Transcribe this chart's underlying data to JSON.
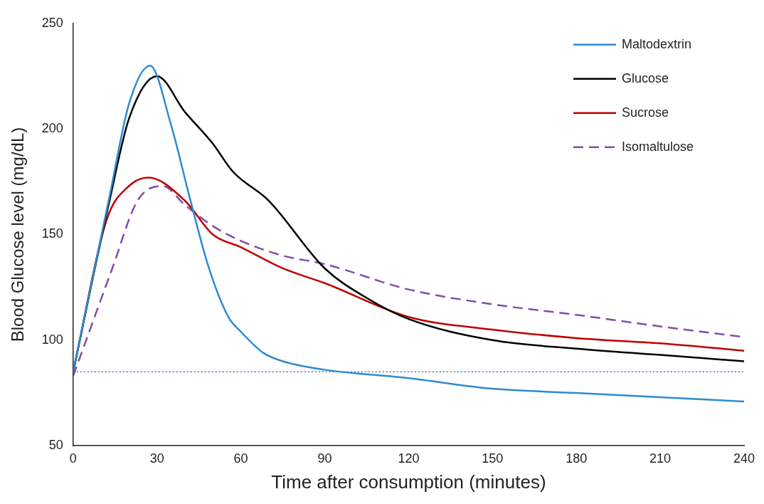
{
  "chart_data": {
    "type": "line",
    "xlabel": "Time after consumption (minutes)",
    "ylabel": "Blood Glucose level (mg/dL)",
    "xlim": [
      0,
      240
    ],
    "xticks": [
      0,
      30,
      60,
      90,
      120,
      150,
      180,
      210,
      240
    ],
    "ylim": [
      50,
      250
    ],
    "yticks": [
      50,
      100,
      150,
      200,
      250
    ],
    "grid": false,
    "legend": "top right",
    "marker": "none",
    "series": [
      {
        "name": "Maltodextrin",
        "color": "#2e8bd0",
        "x": [
          0,
          13,
          20,
          27.5,
          35,
          41.6,
          48.6,
          55.5,
          60,
          68,
          75,
          90,
          120,
          150,
          180,
          210,
          240
        ],
        "values": [
          85,
          168,
          212,
          230,
          202,
          168,
          134,
          111,
          104,
          94,
          90,
          86,
          82,
          77,
          75,
          73,
          71
        ]
      },
      {
        "name": "Glucose",
        "color": "#000000",
        "x": [
          0,
          13,
          20,
          30,
          40,
          50,
          57,
          70,
          90,
          105,
          120,
          150,
          180,
          210,
          240
        ],
        "values": [
          85,
          166,
          205,
          225,
          208,
          193,
          180,
          166,
          134,
          120,
          110,
          100,
          96,
          93,
          90
        ]
      },
      {
        "name": "Sucrose",
        "color": "#c00000",
        "x": [
          0,
          12,
          20,
          27,
          40,
          50,
          60,
          75,
          90,
          120,
          150,
          180,
          210,
          240
        ],
        "values": [
          85,
          157,
          173,
          177,
          166,
          150,
          144,
          134,
          127,
          111,
          105,
          101,
          98.5,
          95
        ]
      },
      {
        "name": "Isomaltulose",
        "color": "#7f4fa6",
        "line_style": "dashed",
        "x": [
          0,
          14,
          23,
          32,
          40,
          50,
          60,
          75,
          90,
          120,
          150,
          180,
          210,
          240
        ],
        "values": [
          83,
          134,
          166,
          173,
          164,
          154,
          147,
          140,
          136,
          124,
          117,
          112,
          106.5,
          101.5
        ]
      }
    ],
    "ref_lines": [
      {
        "axis": "y",
        "value": 85,
        "color": "#4472c4",
        "line_style": "dotted"
      }
    ]
  }
}
